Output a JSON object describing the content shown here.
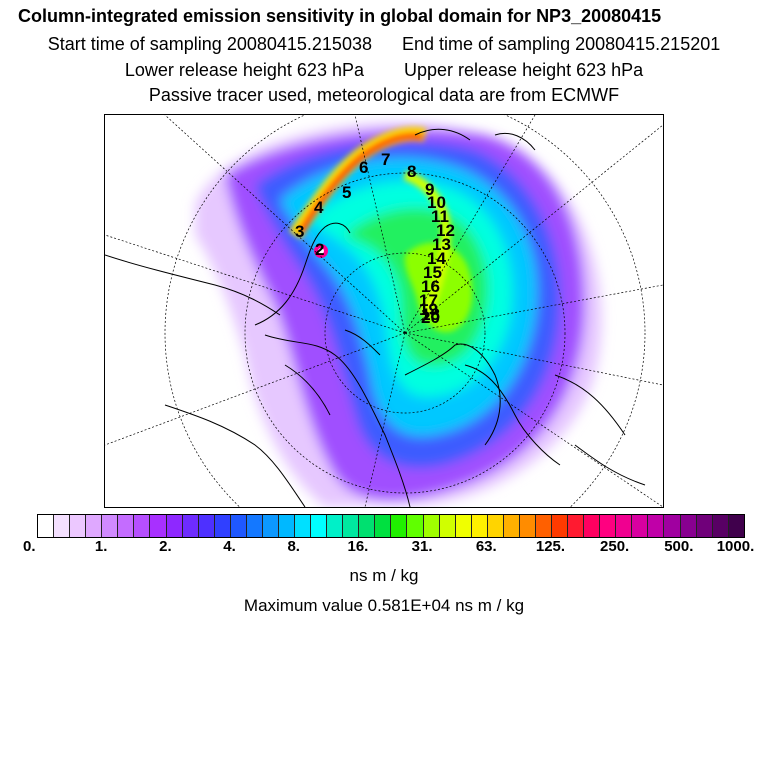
{
  "header": {
    "title": "Column-integrated emission sensitivity in global domain for NP3_20080415",
    "start_time": "Start time of sampling 20080415.215038",
    "end_time": "End time of sampling 20080415.215201",
    "lower_release": "Lower release height  623 hPa",
    "upper_release": "Upper release height  623 hPa",
    "tracer_info": "Passive tracer used, meteorological data are from ECMWF"
  },
  "map": {
    "trajectory_labels": [
      "2",
      "3",
      "4",
      "5",
      "6",
      "7",
      "8",
      "9",
      "10",
      "11",
      "12",
      "13",
      "14",
      "15",
      "16",
      "17",
      "18",
      "19",
      "20"
    ]
  },
  "colorbar": {
    "tick_labels": [
      "0.",
      "1.",
      "2.",
      "4.",
      "8.",
      "16.",
      "31.",
      "63.",
      "125.",
      "250.",
      "500.",
      "1000."
    ],
    "colors": [
      "#ffffff",
      "#f4e0ff",
      "#ecc8ff",
      "#dfa8ff",
      "#d08aff",
      "#c46cff",
      "#b64fff",
      "#a830ff",
      "#8e28ff",
      "#6e2cff",
      "#4e30ff",
      "#3040ff",
      "#1f58ff",
      "#1478ff",
      "#0c98ff",
      "#00b8ff",
      "#00e0ff",
      "#00ffff",
      "#00f0c8",
      "#00e8a0",
      "#00e070",
      "#00e040",
      "#20f000",
      "#60ff00",
      "#a0ff00",
      "#d0ff00",
      "#f0ff00",
      "#fff000",
      "#ffd400",
      "#ffb000",
      "#ff8c00",
      "#ff6000",
      "#ff3a00",
      "#ff1a30",
      "#ff0060",
      "#ff0080",
      "#f00090",
      "#d800a0",
      "#c000a8",
      "#a000a0",
      "#880090",
      "#70007a",
      "#580064",
      "#40004c"
    ],
    "units": "ns m / kg",
    "max_value": "Maximum value  0.581E+04 ns m / kg"
  }
}
